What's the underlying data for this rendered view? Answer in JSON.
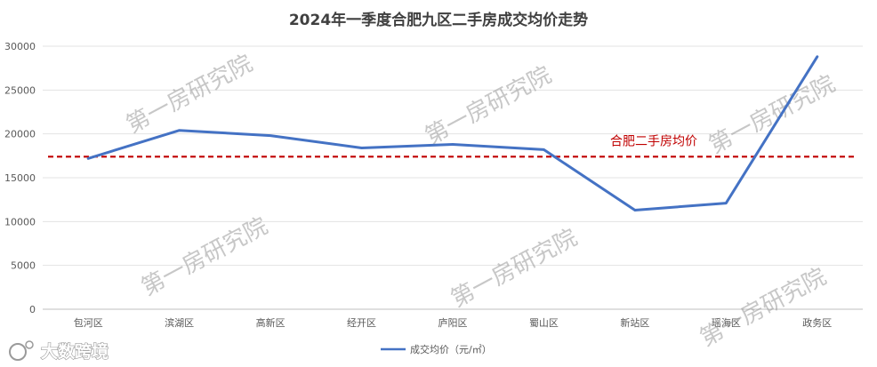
{
  "chart_data": {
    "type": "line",
    "title": "2024年一季度合肥九区二手房成交均价走势",
    "categories": [
      "包河区",
      "滨湖区",
      "高新区",
      "经开区",
      "庐阳区",
      "蜀山区",
      "新站区",
      "瑶海区",
      "政务区"
    ],
    "series": [
      {
        "name": "成交均价（元/㎡）",
        "values": [
          17200,
          20400,
          19800,
          18400,
          18800,
          18200,
          11300,
          12100,
          28800
        ],
        "color": "#4472c4"
      }
    ],
    "ylim": [
      0,
      30000
    ],
    "yticks": [
      "0",
      "5000",
      "10000",
      "15000",
      "20000",
      "25000",
      "30000"
    ],
    "reference_line": {
      "label": "合肥二手房均价",
      "value": 17400,
      "color": "#c00000",
      "style": "dashed"
    },
    "grid": true,
    "legend": "bottom-center"
  },
  "watermarks": [
    "第一房研究院",
    "第一房研究院",
    "第一房研究院",
    "第一房研究院",
    "第一房研究院",
    "第一房研究院"
  ],
  "logo": {
    "text": "大数跨境",
    "icon": "logo-icon"
  }
}
